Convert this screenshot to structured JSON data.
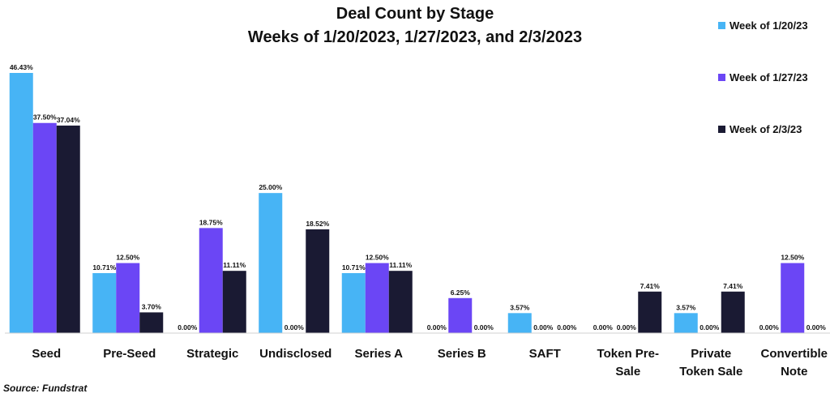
{
  "chart_data": {
    "type": "bar",
    "title": "Deal Count by Stage",
    "subtitle": "Weeks of 1/20/2023, 1/27/2023, and 2/3/2023",
    "categories": [
      [
        "Seed"
      ],
      [
        "Pre-Seed"
      ],
      [
        "Strategic"
      ],
      [
        "Undisclosed"
      ],
      [
        "Series A"
      ],
      [
        "Series B"
      ],
      [
        "SAFT"
      ],
      [
        "Token Pre-",
        "Sale"
      ],
      [
        "Private",
        "Token Sale"
      ],
      [
        "Convertible",
        "Note"
      ]
    ],
    "series": [
      {
        "name": "Week of 1/20/23",
        "color": "#47b4f5",
        "values": [
          46.43,
          10.71,
          0.0,
          25.0,
          10.71,
          0.0,
          3.57,
          0.0,
          3.57,
          0.0
        ],
        "labels": [
          "46.43%",
          "10.71%",
          "0.00%",
          "25.00%",
          "10.71%",
          "0.00%",
          "3.57%",
          "0.00%",
          "3.57%",
          "0.00%"
        ]
      },
      {
        "name": "Week of 1/27/23",
        "color": "#6b46f5",
        "values": [
          37.5,
          12.5,
          18.75,
          0.0,
          12.5,
          6.25,
          0.0,
          0.0,
          0.0,
          12.5
        ],
        "labels": [
          "37.50%",
          "12.50%",
          "18.75%",
          "0.00%",
          "12.50%",
          "6.25%",
          "0.00%",
          "0.00%",
          "0.00%",
          "12.50%"
        ]
      },
      {
        "name": "Week of 2/3/23",
        "color": "#1a1a33",
        "values": [
          37.04,
          3.7,
          11.11,
          18.52,
          11.11,
          0.0,
          0.0,
          7.41,
          7.41,
          0.0
        ],
        "labels": [
          "37.04%",
          "3.70%",
          "11.11%",
          "18.52%",
          "11.11%",
          "0.00%",
          "0.00%",
          "7.41%",
          "7.41%",
          "0.00%"
        ]
      }
    ],
    "ylim": [
      0,
      46.43
    ],
    "grid": false,
    "legend": "top-right"
  },
  "source": "Source: Fundstrat"
}
